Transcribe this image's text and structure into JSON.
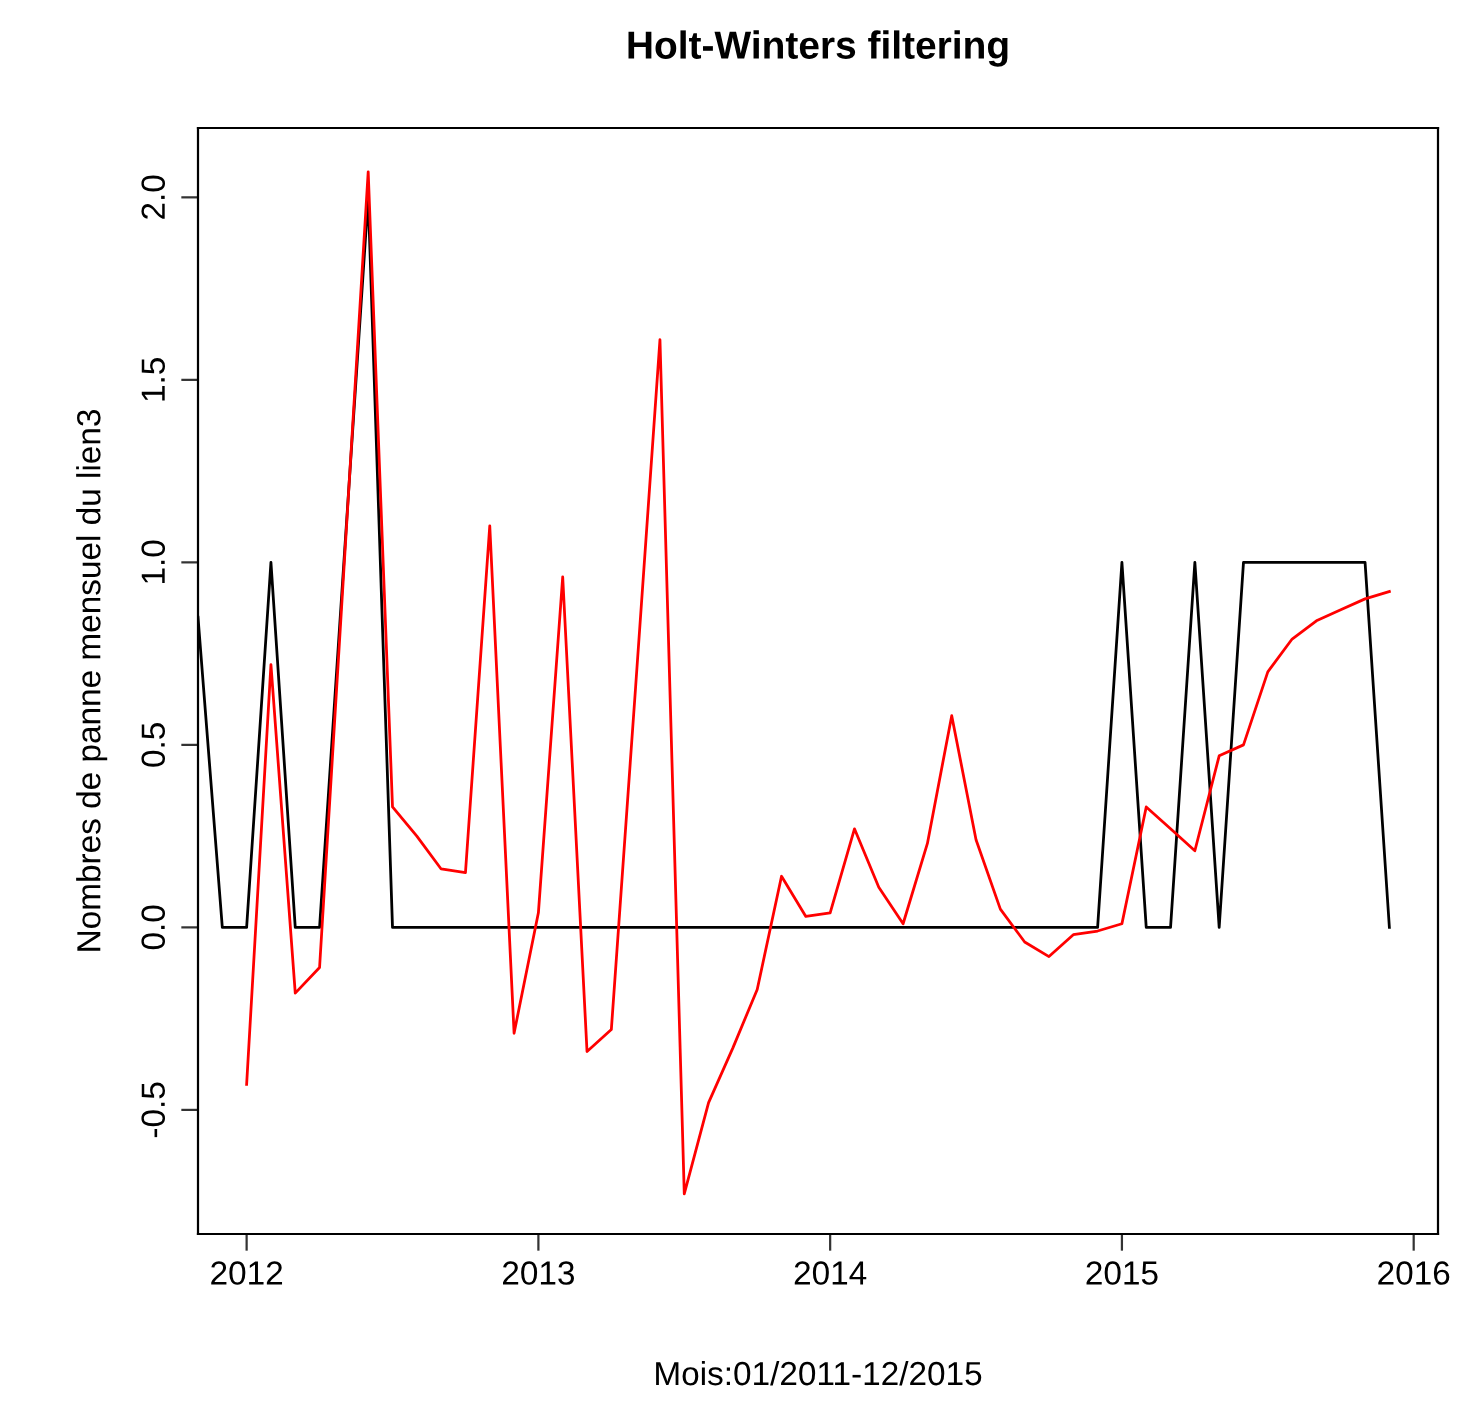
{
  "chart_data": {
    "type": "line",
    "title": "Holt-Winters filtering",
    "xlabel": "Mois:01/2011-12/2015",
    "ylabel": "Nombres de panne mensuel du lien3",
    "xlim": [
      "2011-11",
      "2016-02"
    ],
    "xticks": [
      {
        "value": "2012-01",
        "label": "2012"
      },
      {
        "value": "2013-01",
        "label": "2013"
      },
      {
        "value": "2014-01",
        "label": "2014"
      },
      {
        "value": "2015-01",
        "label": "2015"
      },
      {
        "value": "2016-01",
        "label": "2016"
      }
    ],
    "ylim": [
      -0.84,
      2.19
    ],
    "yticks": [
      {
        "value": -0.5,
        "label": "-0.5"
      },
      {
        "value": 0,
        "label": "0.0"
      },
      {
        "value": 0.5,
        "label": "0.5"
      },
      {
        "value": 1,
        "label": "1.0"
      },
      {
        "value": 1.5,
        "label": "1.5"
      },
      {
        "value": 2,
        "label": "2.0"
      }
    ],
    "grid": false,
    "marker": "none",
    "line_style": "solid",
    "series": [
      {
        "color": "#000000",
        "x": [
          "2011-11",
          "2011-12",
          "2012-01",
          "2012-02",
          "2012-03",
          "2012-04",
          "2012-05",
          "2012-06",
          "2012-07",
          "2012-08",
          "2012-09",
          "2012-10",
          "2012-11",
          "2012-12",
          "2013-01",
          "2013-02",
          "2013-03",
          "2013-04",
          "2013-05",
          "2013-06",
          "2013-07",
          "2013-08",
          "2013-09",
          "2013-10",
          "2013-11",
          "2013-12",
          "2014-01",
          "2014-02",
          "2014-03",
          "2014-04",
          "2014-05",
          "2014-06",
          "2014-07",
          "2014-08",
          "2014-09",
          "2014-10",
          "2014-11",
          "2014-12",
          "2015-01",
          "2015-02",
          "2015-03",
          "2015-04",
          "2015-05",
          "2015-06",
          "2015-07",
          "2015-08",
          "2015-09",
          "2015-10",
          "2015-11",
          "2015-12"
        ],
        "values": [
          0.85,
          0,
          0,
          1,
          0,
          0,
          1,
          2,
          0,
          0,
          0,
          0,
          0,
          0,
          0,
          0,
          0,
          0,
          0,
          0,
          0,
          0,
          0,
          0,
          0,
          0,
          0,
          0,
          0,
          0,
          0,
          0,
          0,
          0,
          0,
          0,
          0,
          0,
          1,
          0,
          0,
          1,
          0,
          1,
          1,
          1,
          1,
          1,
          1,
          0
        ]
      },
      {
        "color": "#ff0000",
        "x": [
          "2012-01",
          "2012-02",
          "2012-03",
          "2012-04",
          "2012-05",
          "2012-06",
          "2012-07",
          "2012-08",
          "2012-09",
          "2012-10",
          "2012-11",
          "2012-12",
          "2013-01",
          "2013-02",
          "2013-03",
          "2013-04",
          "2013-05",
          "2013-06",
          "2013-07",
          "2013-08",
          "2013-09",
          "2013-10",
          "2013-11",
          "2013-12",
          "2014-01",
          "2014-02",
          "2014-03",
          "2014-04",
          "2014-05",
          "2014-06",
          "2014-07",
          "2014-08",
          "2014-09",
          "2014-10",
          "2014-11",
          "2014-12",
          "2015-01",
          "2015-02",
          "2015-03",
          "2015-04",
          "2015-05",
          "2015-06",
          "2015-07",
          "2015-08",
          "2015-09",
          "2015-10",
          "2015-11",
          "2015-12"
        ],
        "values": [
          -0.43,
          0.72,
          -0.18,
          -0.11,
          0.98,
          2.07,
          0.33,
          0.25,
          0.16,
          0.15,
          1.1,
          -0.29,
          0.04,
          0.96,
          -0.34,
          -0.28,
          0.66,
          1.61,
          -0.73,
          -0.48,
          -0.33,
          -0.17,
          0.14,
          0.03,
          0.04,
          0.27,
          0.11,
          0.01,
          0.23,
          0.58,
          0.24,
          0.05,
          -0.04,
          -0.08,
          -0.02,
          -0.01,
          0.01,
          0.33,
          0.27,
          0.21,
          0.47,
          0.5,
          0.7,
          0.79,
          0.84,
          0.87,
          0.9,
          0.92
        ]
      }
    ]
  }
}
